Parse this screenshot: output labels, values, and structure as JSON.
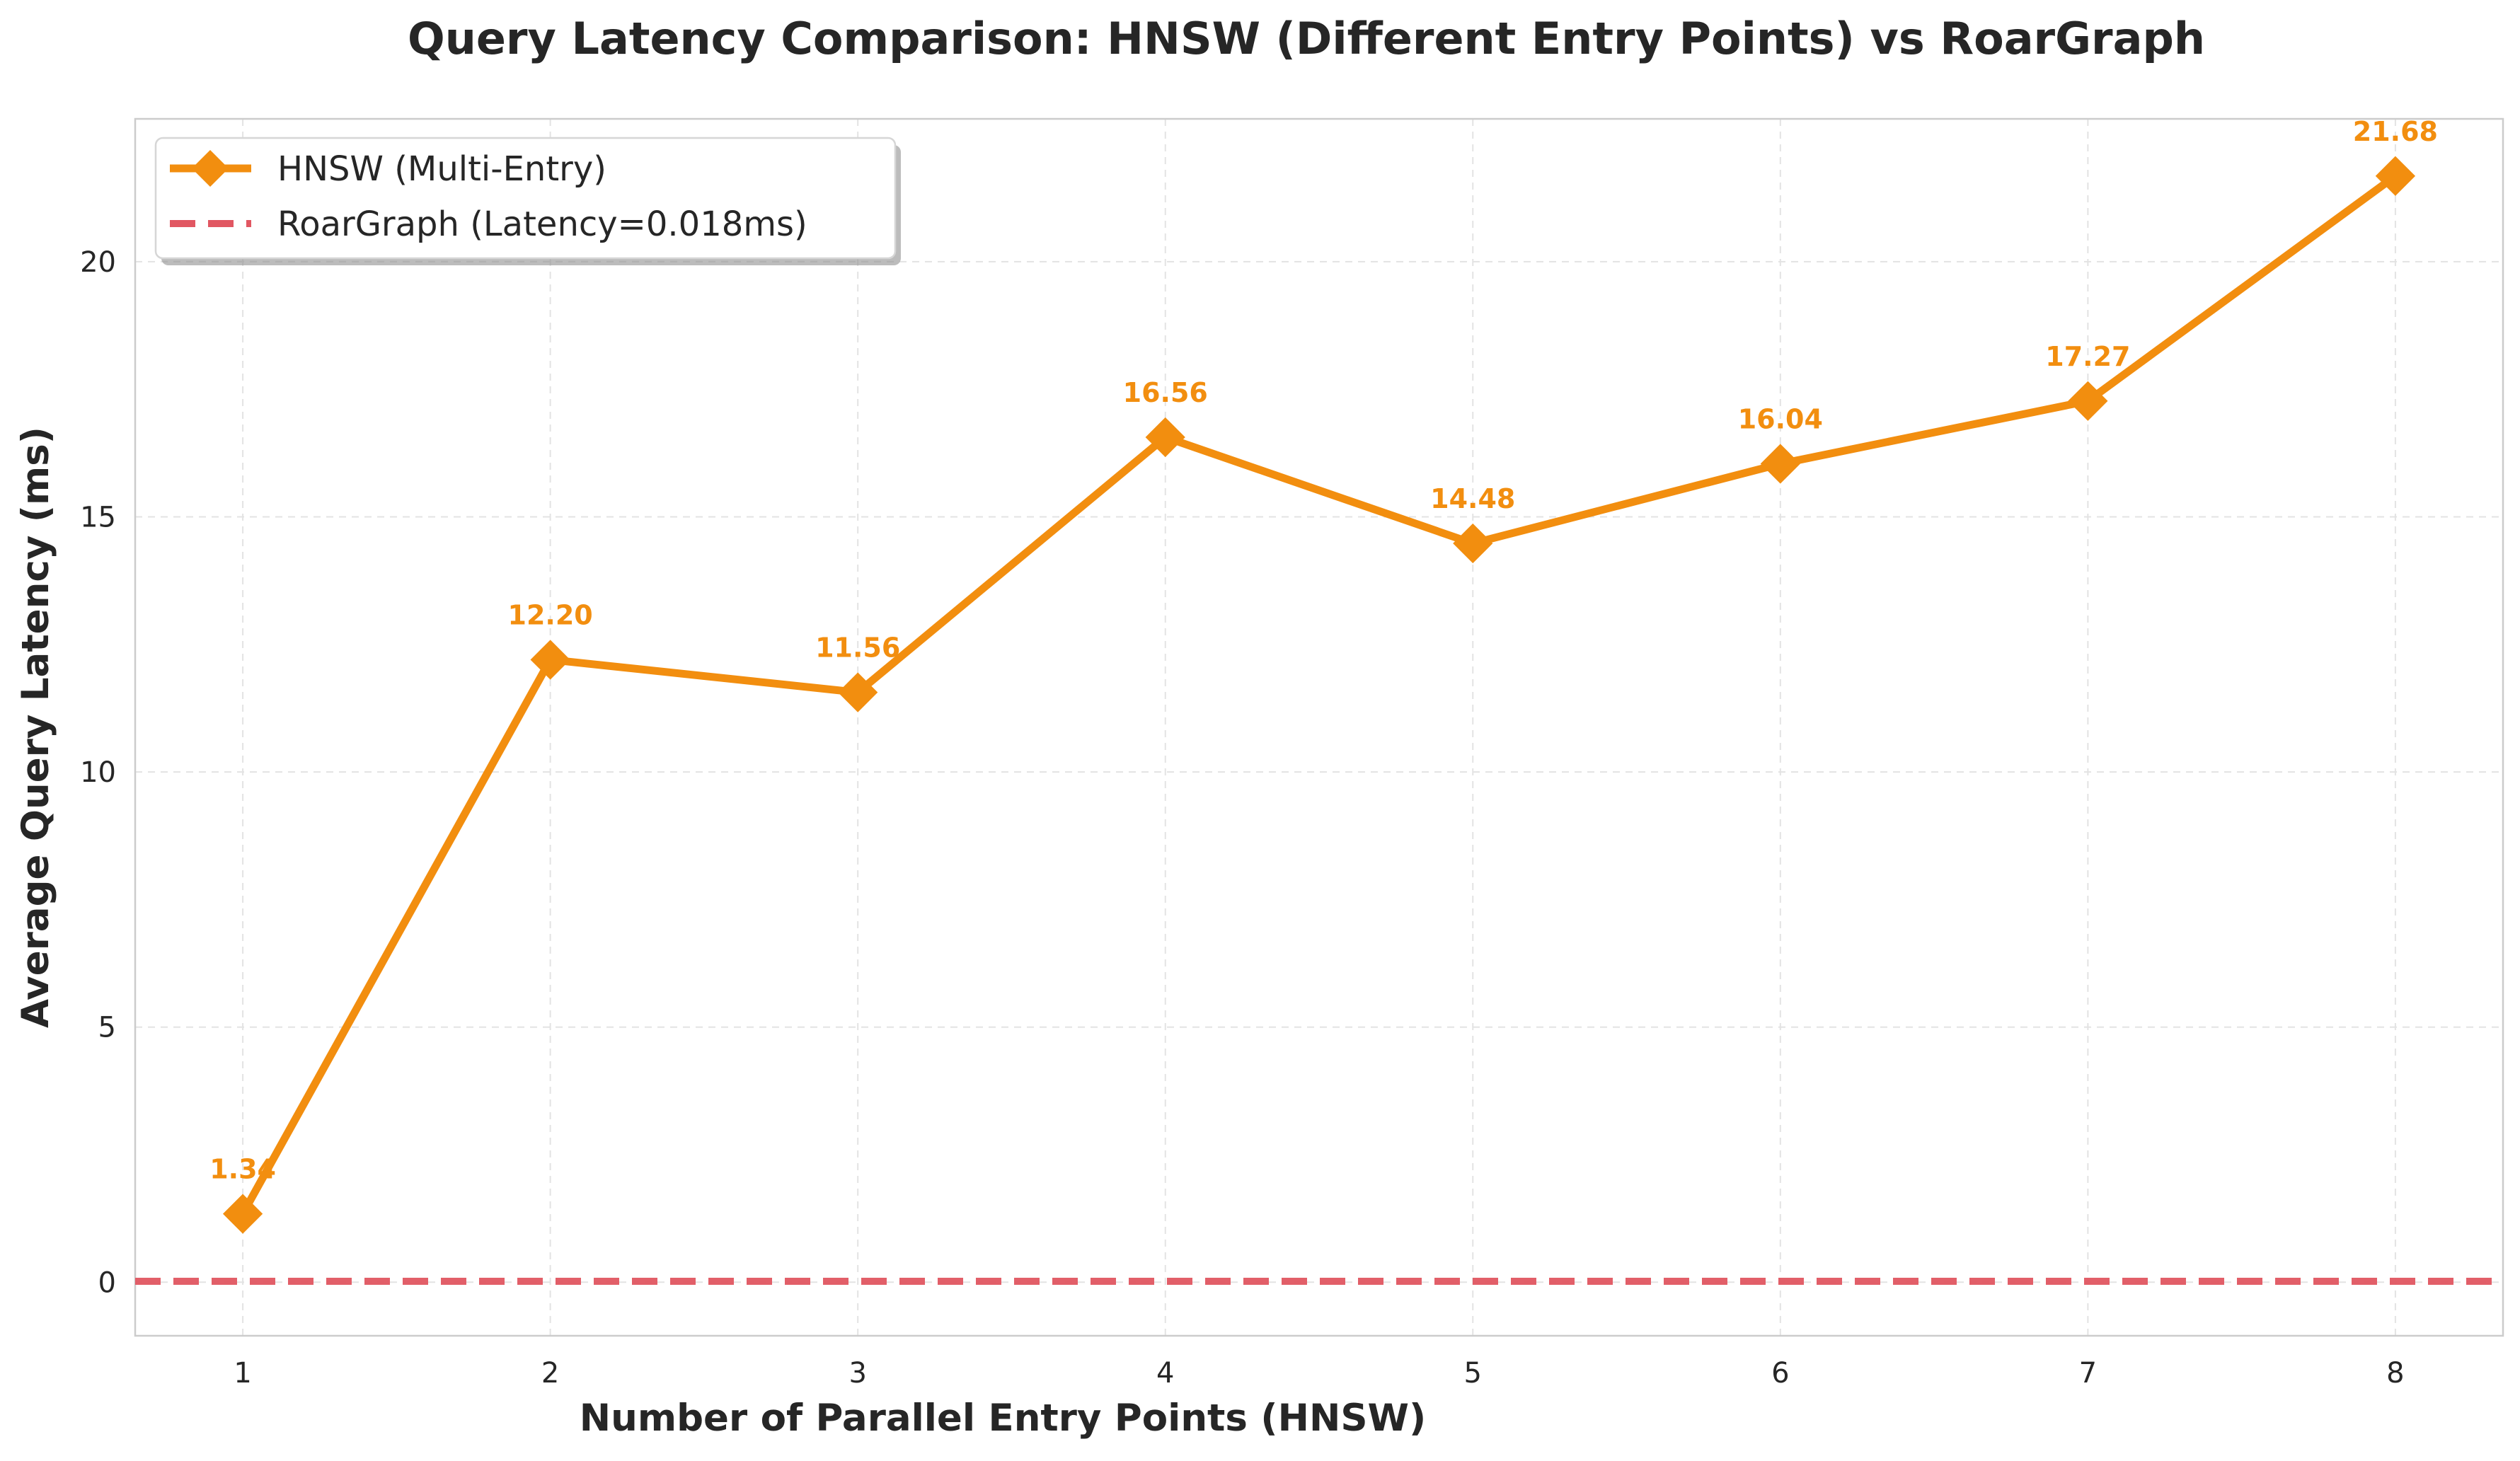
{
  "chart_data": {
    "type": "line",
    "title": "Query Latency Comparison: HNSW (Different Entry Points) vs RoarGraph",
    "xlabel": "Number of Parallel Entry Points (HNSW)",
    "ylabel": "Average Query Latency (ms)",
    "x": [
      1,
      2,
      3,
      4,
      5,
      6,
      7,
      8
    ],
    "xticks": [
      "1",
      "2",
      "3",
      "4",
      "5",
      "6",
      "7",
      "8"
    ],
    "yticks": [
      "0",
      "5",
      "10",
      "15",
      "20"
    ],
    "ytick_values": [
      0,
      5,
      10,
      15,
      20
    ],
    "xlim": [
      0.65,
      8.35
    ],
    "ylim": [
      -1.05,
      22.8
    ],
    "grid": true,
    "legend_position": "top-left",
    "series": [
      {
        "name": "HNSW (Multi-Entry)",
        "values": [
          1.34,
          12.2,
          11.56,
          16.56,
          14.48,
          16.04,
          17.27,
          21.68
        ],
        "labels": [
          "1.34",
          "12.20",
          "11.56",
          "16.56",
          "14.48",
          "16.04",
          "17.27",
          "21.68"
        ],
        "color": "#f28e0f",
        "marker": "diamond",
        "style": "solid"
      }
    ],
    "reference_lines": [
      {
        "name": "RoarGraph (Latency=0.018ms)",
        "value": 0.018,
        "color": "#e15762",
        "style": "dashed"
      }
    ]
  }
}
